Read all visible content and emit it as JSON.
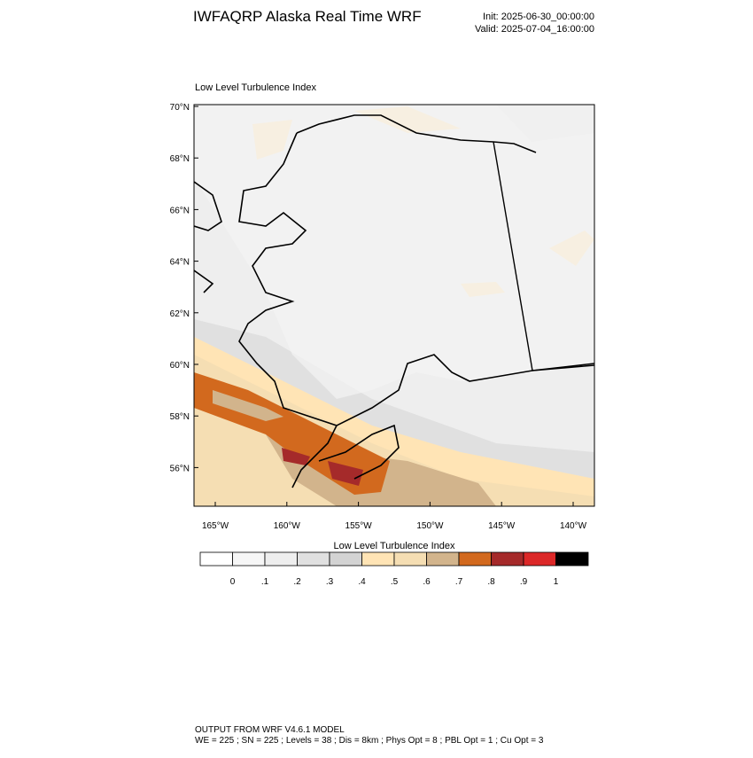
{
  "header": {
    "title": "IWFAQRP Alaska Real Time WRF",
    "init": "Init: 2025-06-30_00:00:00",
    "valid": "Valid: 2025-07-04_16:00:00"
  },
  "map": {
    "title": "Low Level Turbulence Index",
    "lat_labels": [
      "70°N",
      "68°N",
      "66°N",
      "64°N",
      "62°N",
      "60°N",
      "58°N",
      "56°N"
    ],
    "lon_labels": [
      "165°W",
      "160°W",
      "155°W",
      "150°W",
      "145°W",
      "140°W"
    ]
  },
  "colorbar": {
    "title": "Low Level Turbulence Index",
    "labels": [
      "0",
      ".1",
      ".2",
      ".3",
      ".4",
      ".5",
      ".6",
      ".7",
      ".8",
      ".9",
      "1"
    ],
    "colors": [
      "#ffffff",
      "#f6f6f6",
      "#eeeeee",
      "#e0e0e0",
      "#d3d3d3",
      "#ffe4b5",
      "#f5deb3",
      "#d2b48c",
      "#d2691e",
      "#a52a2a",
      "#dc2828",
      "#000000"
    ]
  },
  "footer": {
    "line1": "OUTPUT FROM WRF V4.6.1 MODEL",
    "line2": "WE = 225 ; SN = 225 ; Levels = 38 ; Dis = 8km ; Phys Opt = 8 ; PBL Opt = 1 ; Cu Opt = 3"
  }
}
